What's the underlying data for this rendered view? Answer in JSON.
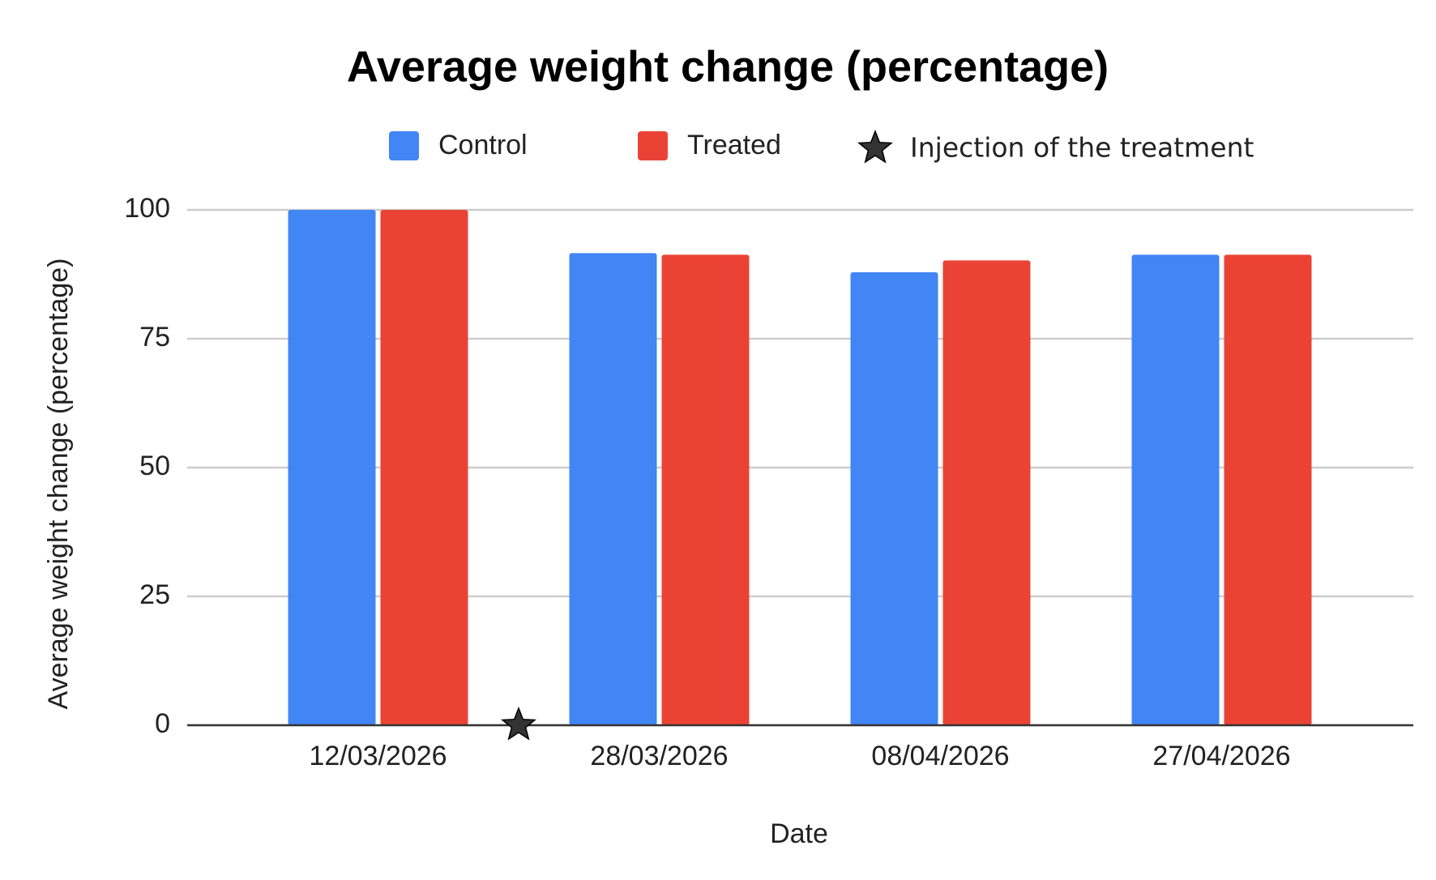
{
  "chart_data": {
    "type": "bar",
    "title": "Average weight change (percentage)",
    "x_label": "Date",
    "y_label": "Average weight change (percentage)",
    "categories": [
      "12/03/2026",
      "28/03/2026",
      "08/04/2026",
      "27/04/2026"
    ],
    "series": [
      {
        "name": "Control",
        "color": "#4285f4",
        "values": [
          100,
          91.6,
          87.9,
          91.3
        ]
      },
      {
        "name": "Treated",
        "color": "#ea4335",
        "values": [
          100,
          91.3,
          90.2,
          91.3
        ]
      }
    ],
    "annotations": [
      {
        "text": "Injection of the treatment",
        "y": 0,
        "color": "#333333"
      }
    ],
    "ylim": [
      0,
      100
    ],
    "yticks": [
      0,
      25,
      50,
      75,
      100
    ],
    "grid": true
  }
}
